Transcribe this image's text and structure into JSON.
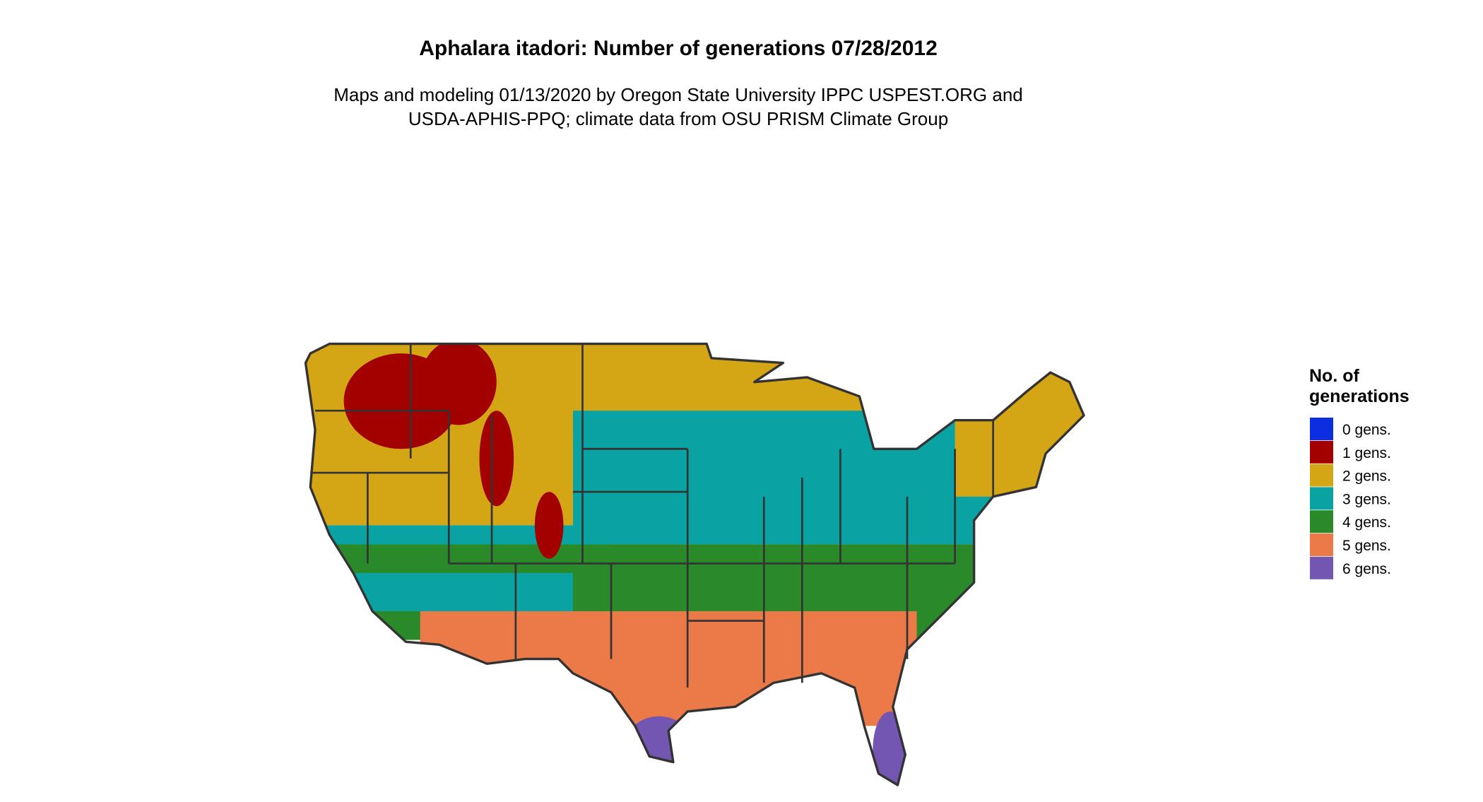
{
  "header": {
    "title": "Aphalara itadori: Number of generations 07/28/2012",
    "subtitle_lines": [
      "Maps and modeling 01/13/2020 by Oregon State University IPPC USPEST.ORG and",
      "USDA-APHIS-PPQ; climate data from OSU PRISM Climate Group"
    ]
  },
  "legend": {
    "title_lines": [
      "No. of",
      "generations"
    ],
    "items": [
      {
        "label": "0 gens.",
        "color": "#0a2ee0"
      },
      {
        "label": "1 gens.",
        "color": "#a30000"
      },
      {
        "label": "2 gens.",
        "color": "#d4a514"
      },
      {
        "label": "3 gens.",
        "color": "#0aa3a3"
      },
      {
        "label": "4 gens.",
        "color": "#2a8a2a"
      },
      {
        "label": "5 gens.",
        "color": "#ec7a48"
      },
      {
        "label": "6 gens.",
        "color": "#7355b2"
      }
    ]
  }
}
